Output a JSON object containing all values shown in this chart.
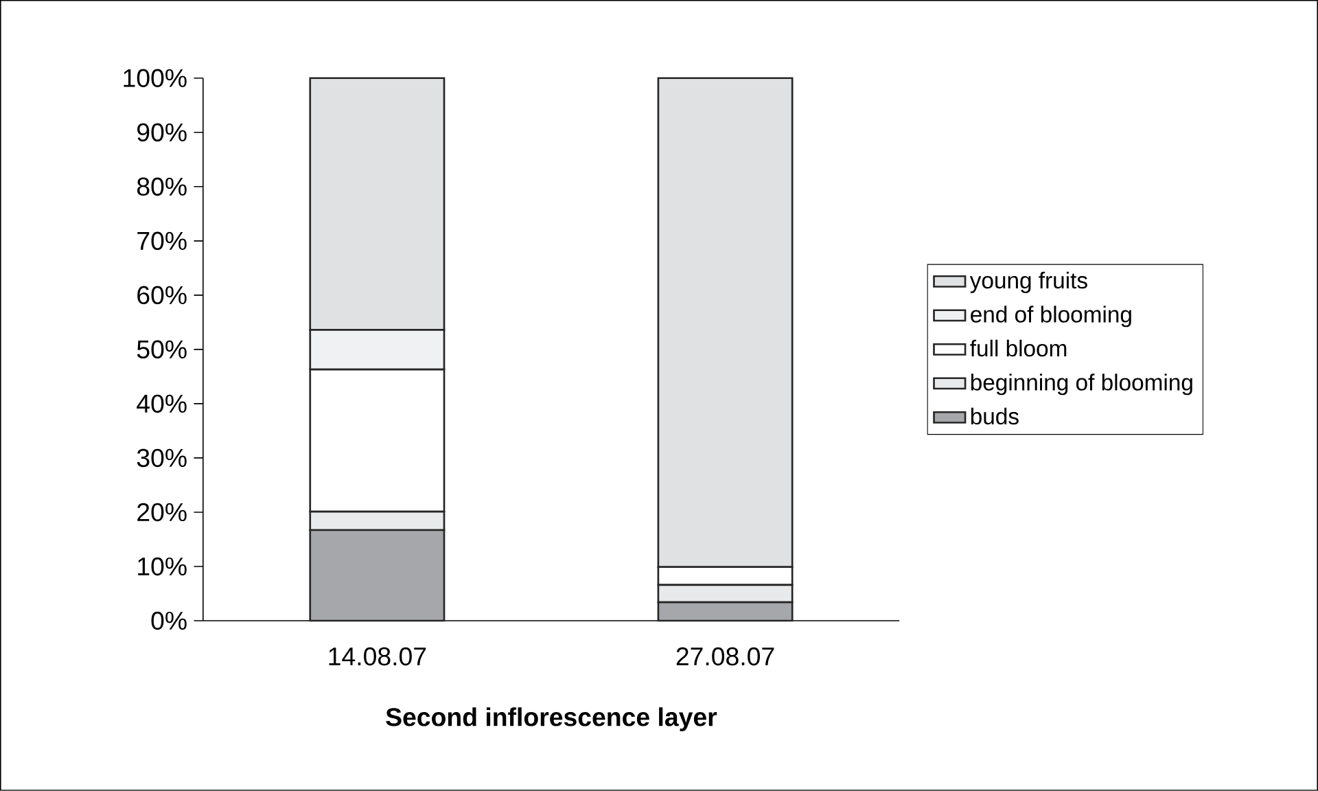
{
  "chart_data": {
    "type": "bar",
    "stacked": true,
    "xlabel": "**Second inflorescence layer**",
    "categories": [
      "14.08.07",
      "27.08.07"
    ],
    "series": [
      {
        "name": "buds",
        "color": "#a6a7aa",
        "values": [
          16.7,
          3.4
        ]
      },
      {
        "name": "beginning of blooming",
        "color": "#e8e9ea",
        "values": [
          3.4,
          3.2
        ]
      },
      {
        "name": "full bloom",
        "color": "#ffffff",
        "values": [
          26.2,
          3.3
        ]
      },
      {
        "name": "end of blooming",
        "color": "#f0f1f2",
        "values": [
          7.3,
          0
        ]
      },
      {
        "name": "young fruits",
        "color": "#e0e1e3",
        "values": [
          46.4,
          90.1
        ]
      }
    ],
    "ylim": [
      0,
      100
    ],
    "yticks": [
      {
        "value": 0,
        "label": "0%"
      },
      {
        "value": 10,
        "label": "10%"
      },
      {
        "value": 20,
        "label": "20%"
      },
      {
        "value": 30,
        "label": "30%"
      },
      {
        "value": 40,
        "label": "40%"
      },
      {
        "value": 50,
        "label": "50%"
      },
      {
        "value": 60,
        "label": "60%"
      },
      {
        "value": 70,
        "label": "70%"
      },
      {
        "value": 80,
        "label": "80%"
      },
      {
        "value": 90,
        "label": "90%"
      },
      {
        "value": 100,
        "label": "100%"
      }
    ],
    "grid": false,
    "legend": "right"
  }
}
